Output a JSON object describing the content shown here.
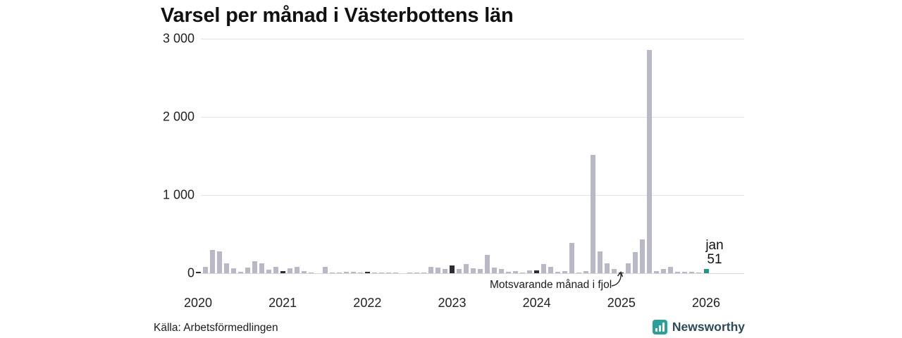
{
  "title": "Varsel per månad i Västerbottens län",
  "source": "Källa: Arbetsförmedlingen",
  "branding": {
    "name": "Newsworthy"
  },
  "annotation": {
    "text": "Motsvarande månad i fjol"
  },
  "value_label": {
    "month": "jan",
    "value": "51"
  },
  "colors": {
    "bar_normal": "#b8b9c4",
    "bar_january_highlight": "#2c2c31",
    "bar_current": "#1a9a8b",
    "grid": "#e2e2e2",
    "brand_teal": "#2aa198",
    "brand_text": "#2e4a56"
  },
  "chart_data": {
    "type": "bar",
    "title": "Varsel per månad i Västerbottens län",
    "xlabel": "",
    "ylabel": "",
    "ylim": [
      0,
      3000
    ],
    "grid": "horizontal",
    "yticks": [
      {
        "v": 3000,
        "label": "3 000"
      },
      {
        "v": 2000,
        "label": "2 000"
      },
      {
        "v": 1000,
        "label": "1 000"
      },
      {
        "v": 0,
        "label": "0"
      }
    ],
    "x_years": [
      "2020",
      "2021",
      "2022",
      "2023",
      "2024",
      "2025",
      "2026"
    ],
    "legend_note": "dark bars mark January of each year; teal bar is the latest month (jan 2026)",
    "series": [
      {
        "m": "jan 2020",
        "v": 20,
        "k": "jan"
      },
      {
        "m": "feb 2020",
        "v": 85,
        "k": "norm"
      },
      {
        "m": "mar 2020",
        "v": 300,
        "k": "norm"
      },
      {
        "m": "apr 2020",
        "v": 280,
        "k": "norm"
      },
      {
        "m": "maj 2020",
        "v": 125,
        "k": "norm"
      },
      {
        "m": "jun 2020",
        "v": 65,
        "k": "norm"
      },
      {
        "m": "jul 2020",
        "v": 15,
        "k": "norm"
      },
      {
        "m": "aug 2020",
        "v": 75,
        "k": "norm"
      },
      {
        "m": "sep 2020",
        "v": 150,
        "k": "norm"
      },
      {
        "m": "okt 2020",
        "v": 130,
        "k": "norm"
      },
      {
        "m": "nov 2020",
        "v": 45,
        "k": "norm"
      },
      {
        "m": "dec 2020",
        "v": 80,
        "k": "norm"
      },
      {
        "m": "jan 2021",
        "v": 25,
        "k": "jan"
      },
      {
        "m": "feb 2021",
        "v": 65,
        "k": "norm"
      },
      {
        "m": "mar 2021",
        "v": 85,
        "k": "norm"
      },
      {
        "m": "apr 2021",
        "v": 30,
        "k": "norm"
      },
      {
        "m": "maj 2021",
        "v": 10,
        "k": "norm"
      },
      {
        "m": "jun 2021",
        "v": 0,
        "k": "norm"
      },
      {
        "m": "jul 2021",
        "v": 80,
        "k": "norm"
      },
      {
        "m": "aug 2021",
        "v": 5,
        "k": "norm"
      },
      {
        "m": "sep 2021",
        "v": 10,
        "k": "norm"
      },
      {
        "m": "okt 2021",
        "v": 20,
        "k": "norm"
      },
      {
        "m": "nov 2021",
        "v": 15,
        "k": "norm"
      },
      {
        "m": "dec 2021",
        "v": 10,
        "k": "norm"
      },
      {
        "m": "jan 2022",
        "v": 20,
        "k": "jan"
      },
      {
        "m": "feb 2022",
        "v": 10,
        "k": "norm"
      },
      {
        "m": "mar 2022",
        "v": 5,
        "k": "norm"
      },
      {
        "m": "apr 2022",
        "v": 10,
        "k": "norm"
      },
      {
        "m": "maj 2022",
        "v": 10,
        "k": "norm"
      },
      {
        "m": "jun 2022",
        "v": 0,
        "k": "norm"
      },
      {
        "m": "jul 2022",
        "v": 5,
        "k": "norm"
      },
      {
        "m": "aug 2022",
        "v": 10,
        "k": "norm"
      },
      {
        "m": "sep 2022",
        "v": 10,
        "k": "norm"
      },
      {
        "m": "okt 2022",
        "v": 85,
        "k": "norm"
      },
      {
        "m": "nov 2022",
        "v": 70,
        "k": "norm"
      },
      {
        "m": "dec 2022",
        "v": 55,
        "k": "norm"
      },
      {
        "m": "jan 2023",
        "v": 100,
        "k": "jan"
      },
      {
        "m": "feb 2023",
        "v": 50,
        "k": "norm"
      },
      {
        "m": "mar 2023",
        "v": 115,
        "k": "norm"
      },
      {
        "m": "apr 2023",
        "v": 65,
        "k": "norm"
      },
      {
        "m": "maj 2023",
        "v": 55,
        "k": "norm"
      },
      {
        "m": "jun 2023",
        "v": 235,
        "k": "norm"
      },
      {
        "m": "jul 2023",
        "v": 70,
        "k": "norm"
      },
      {
        "m": "aug 2023",
        "v": 50,
        "k": "norm"
      },
      {
        "m": "sep 2023",
        "v": 20,
        "k": "norm"
      },
      {
        "m": "okt 2023",
        "v": 25,
        "k": "norm"
      },
      {
        "m": "nov 2023",
        "v": 10,
        "k": "norm"
      },
      {
        "m": "dec 2023",
        "v": 35,
        "k": "norm"
      },
      {
        "m": "jan 2024",
        "v": 40,
        "k": "jan"
      },
      {
        "m": "feb 2024",
        "v": 115,
        "k": "norm"
      },
      {
        "m": "mar 2024",
        "v": 85,
        "k": "norm"
      },
      {
        "m": "apr 2024",
        "v": 15,
        "k": "norm"
      },
      {
        "m": "maj 2024",
        "v": 25,
        "k": "norm"
      },
      {
        "m": "jun 2024",
        "v": 390,
        "k": "norm"
      },
      {
        "m": "jul 2024",
        "v": 10,
        "k": "norm"
      },
      {
        "m": "aug 2024",
        "v": 30,
        "k": "norm"
      },
      {
        "m": "sep 2024",
        "v": 1510,
        "k": "norm"
      },
      {
        "m": "okt 2024",
        "v": 280,
        "k": "norm"
      },
      {
        "m": "nov 2024",
        "v": 130,
        "k": "norm"
      },
      {
        "m": "dec 2024",
        "v": 55,
        "k": "norm"
      },
      {
        "m": "jan 2025",
        "v": 10,
        "k": "jan"
      },
      {
        "m": "feb 2025",
        "v": 130,
        "k": "norm"
      },
      {
        "m": "mar 2025",
        "v": 270,
        "k": "norm"
      },
      {
        "m": "apr 2025",
        "v": 430,
        "k": "norm"
      },
      {
        "m": "maj 2025",
        "v": 2855,
        "k": "norm"
      },
      {
        "m": "jun 2025",
        "v": 25,
        "k": "norm"
      },
      {
        "m": "jul 2025",
        "v": 50,
        "k": "norm"
      },
      {
        "m": "aug 2025",
        "v": 85,
        "k": "norm"
      },
      {
        "m": "sep 2025",
        "v": 20,
        "k": "norm"
      },
      {
        "m": "okt 2025",
        "v": 18,
        "k": "norm"
      },
      {
        "m": "nov 2025",
        "v": 15,
        "k": "norm"
      },
      {
        "m": "dec 2025",
        "v": 5,
        "k": "norm"
      },
      {
        "m": "jan 2026",
        "v": 51,
        "k": "current"
      }
    ]
  }
}
